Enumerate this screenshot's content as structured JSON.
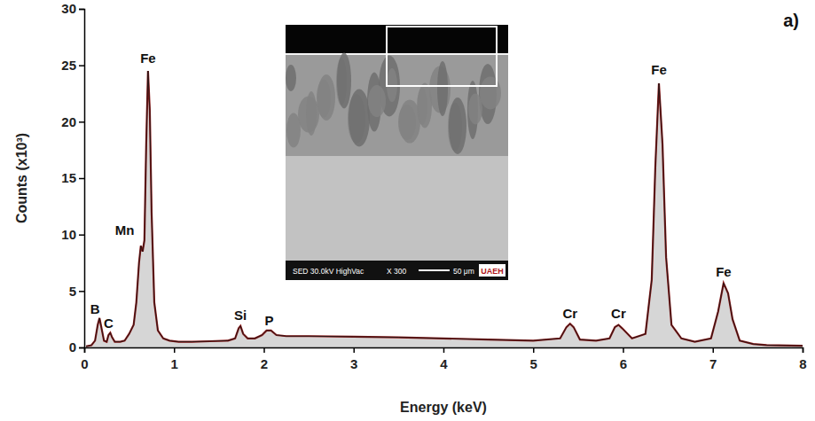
{
  "chart_data": {
    "type": "area",
    "panel_label": "a)",
    "x_label": "Energy (keV)",
    "y_label": "Counts (x10³)",
    "color": "#8b1a1a",
    "xlim": [
      0,
      8
    ],
    "xticks": [
      0,
      1,
      2,
      3,
      4,
      5,
      6,
      7,
      8
    ],
    "ylim": [
      0,
      30
    ],
    "yticks": [
      0,
      5,
      10,
      15,
      20,
      25,
      30
    ],
    "grid": false,
    "x": [
      0.02,
      0.08,
      0.12,
      0.15,
      0.17,
      0.19,
      0.22,
      0.25,
      0.27,
      0.29,
      0.31,
      0.34,
      0.4,
      0.45,
      0.5,
      0.55,
      0.58,
      0.61,
      0.63,
      0.65,
      0.67,
      0.69,
      0.71,
      0.73,
      0.75,
      0.78,
      0.82,
      0.88,
      0.95,
      1.05,
      1.2,
      1.4,
      1.6,
      1.68,
      1.72,
      1.74,
      1.77,
      1.82,
      1.9,
      1.98,
      2.03,
      2.08,
      2.14,
      2.25,
      2.5,
      3.0,
      3.5,
      4.0,
      4.5,
      5.0,
      5.3,
      5.37,
      5.41,
      5.45,
      5.52,
      5.7,
      5.85,
      5.91,
      5.95,
      5.99,
      6.1,
      6.25,
      6.32,
      6.36,
      6.4,
      6.44,
      6.48,
      6.54,
      6.65,
      6.8,
      6.98,
      7.06,
      7.12,
      7.17,
      7.22,
      7.3,
      7.45,
      7.6,
      8.0
    ],
    "values": [
      0.1,
      0.2,
      0.6,
      2.0,
      2.6,
      1.8,
      0.6,
      0.5,
      1.1,
      1.3,
      0.9,
      0.5,
      0.5,
      0.6,
      1.2,
      2.0,
      4.0,
      7.5,
      9.0,
      8.5,
      9.5,
      18.0,
      24.5,
      21.0,
      12.0,
      4.0,
      1.5,
      0.8,
      0.6,
      0.5,
      0.5,
      0.55,
      0.6,
      0.8,
      1.7,
      1.9,
      1.2,
      0.8,
      0.8,
      1.1,
      1.5,
      1.5,
      1.1,
      1.0,
      1.0,
      0.95,
      0.9,
      0.8,
      0.7,
      0.6,
      0.8,
      1.8,
      2.1,
      1.8,
      0.7,
      0.6,
      0.8,
      1.8,
      2.0,
      1.7,
      0.8,
      1.2,
      6.0,
      16.0,
      23.4,
      18.0,
      8.0,
      2.0,
      0.8,
      0.5,
      0.8,
      3.2,
      5.7,
      4.8,
      2.5,
      0.6,
      0.3,
      0.2,
      0.15
    ],
    "annotations": [
      {
        "text": "B",
        "x": 0.12,
        "y": 3.0
      },
      {
        "text": "C",
        "x": 0.27,
        "y": 1.7
      },
      {
        "text": "Mn",
        "x": 0.45,
        "y": 10.0
      },
      {
        "text": "Fe",
        "x": 0.71,
        "y": 25.2
      },
      {
        "text": "Si",
        "x": 1.74,
        "y": 2.4
      },
      {
        "text": "P",
        "x": 2.06,
        "y": 2.0
      },
      {
        "text": "Cr",
        "x": 5.41,
        "y": 2.6
      },
      {
        "text": "Cr",
        "x": 5.95,
        "y": 2.6
      },
      {
        "text": "Fe",
        "x": 6.4,
        "y": 24.2
      },
      {
        "text": "Fe",
        "x": 7.12,
        "y": 6.3
      }
    ],
    "inset": {
      "detector": "SED 30.0kV HighVac",
      "magnification": "X 300",
      "scale_bar": "50 μm",
      "logo": "UAEH"
    }
  }
}
